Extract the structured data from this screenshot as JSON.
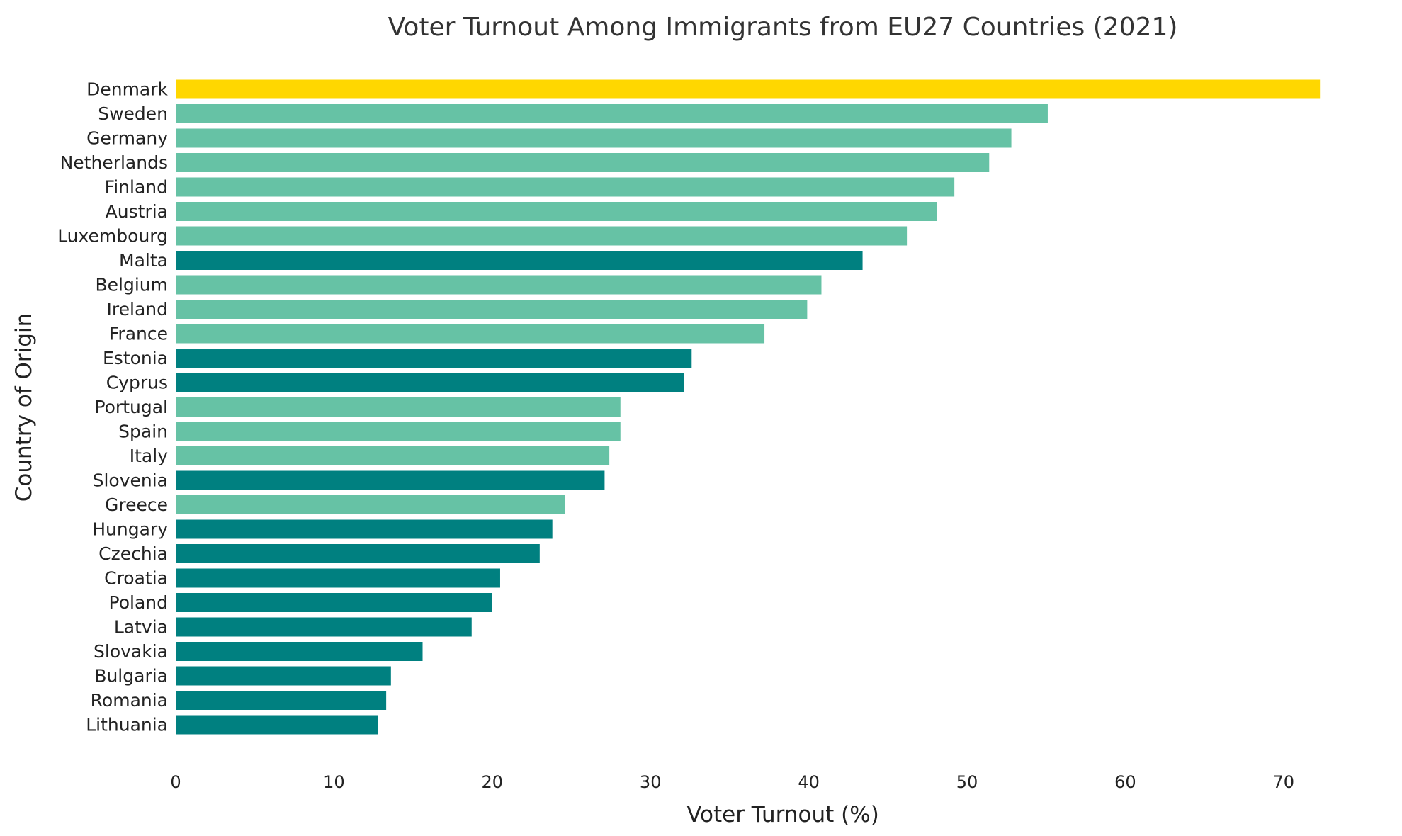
{
  "chart_data": {
    "type": "bar",
    "orientation": "horizontal",
    "title": "Voter Turnout Among Immigrants from EU27 Countries (2021)",
    "xlabel": "Voter Turnout (%)",
    "ylabel": "Country of Origin",
    "xlim": [
      0,
      73.5
    ],
    "xticks": [
      0,
      10,
      20,
      30,
      40,
      50,
      60,
      70
    ],
    "grid": false,
    "legend": "none",
    "colors": {
      "highlight": "#FFD700",
      "group_a": "#66C2A5",
      "group_b": "#008080"
    },
    "categories": [
      "Denmark",
      "Sweden",
      "Germany",
      "Netherlands",
      "Finland",
      "Austria",
      "Luxembourg",
      "Malta",
      "Belgium",
      "Ireland",
      "France",
      "Estonia",
      "Cyprus",
      "Portugal",
      "Spain",
      "Italy",
      "Slovenia",
      "Greece",
      "Hungary",
      "Czechia",
      "Croatia",
      "Poland",
      "Latvia",
      "Slovakia",
      "Bulgaria",
      "Romania",
      "Lithuania"
    ],
    "values": [
      72.3,
      55.1,
      52.8,
      51.4,
      49.2,
      48.1,
      46.2,
      43.4,
      40.8,
      39.9,
      37.2,
      32.6,
      32.1,
      28.1,
      28.1,
      27.4,
      27.1,
      24.6,
      23.8,
      23.0,
      20.5,
      20.0,
      18.7,
      15.6,
      13.6,
      13.3,
      12.8
    ],
    "color_groups": [
      "highlight",
      "group_a",
      "group_a",
      "group_a",
      "group_a",
      "group_a",
      "group_a",
      "group_b",
      "group_a",
      "group_a",
      "group_a",
      "group_b",
      "group_b",
      "group_a",
      "group_a",
      "group_a",
      "group_b",
      "group_a",
      "group_b",
      "group_b",
      "group_b",
      "group_b",
      "group_b",
      "group_b",
      "group_b",
      "group_b",
      "group_b"
    ]
  }
}
